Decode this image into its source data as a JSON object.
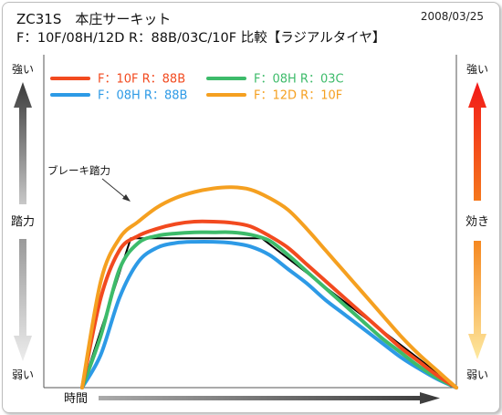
{
  "header": {
    "title_line1": "ZC31S　本庄サーキット",
    "title_line2": "F：10F/08H/12D  R：88B/03C/10F 比較【ラジアルタイヤ】",
    "date": "2008/03/25"
  },
  "left_axis": {
    "top": "強い",
    "middle": "踏力",
    "bottom": "弱い"
  },
  "right_axis": {
    "top": "強い",
    "middle": "効き",
    "bottom": "弱い"
  },
  "x_axis_label": "時間",
  "annotation": "ブレーキ踏力",
  "chart_data": {
    "type": "line",
    "title": "ZC31S　本庄サーキット",
    "subtitle": "F：10F/08H/12D  R：88B/03C/10F 比較【ラジアルタイヤ】",
    "xlabel": "時間",
    "ylabel": "踏力 / 効き (強い–弱い, 目盛りなし)",
    "xlim": [
      0,
      100
    ],
    "ylim": [
      0,
      100
    ],
    "grid": false,
    "legend_position": "top",
    "brake_pedal": {
      "name": "ブレーキ踏力",
      "color": "#000000",
      "x": [
        0,
        13,
        48,
        100
      ],
      "y": [
        0,
        63,
        63,
        0
      ]
    },
    "series": [
      {
        "name": "F：10F  R：88B",
        "color": "#f24a1f",
        "x": [
          0,
          5,
          10,
          15,
          20,
          25,
          30,
          35,
          40,
          45,
          50,
          55,
          60,
          65,
          70,
          75,
          80,
          85,
          90,
          95,
          100
        ],
        "y": [
          0,
          38,
          58,
          64,
          67,
          69,
          70,
          70,
          69.5,
          68,
          64,
          59,
          52,
          45,
          38,
          31,
          24,
          17,
          11,
          5,
          0
        ]
      },
      {
        "name": "F：08H  R：03C",
        "color": "#3dbb6a",
        "x": [
          0,
          5,
          10,
          15,
          20,
          25,
          30,
          35,
          40,
          45,
          50,
          55,
          60,
          65,
          70,
          75,
          80,
          85,
          90,
          95,
          100
        ],
        "y": [
          0,
          22,
          50,
          61,
          64,
          65,
          65.5,
          65.5,
          65.5,
          64.5,
          62,
          56,
          49,
          42,
          35,
          28,
          21,
          15,
          9,
          4,
          0
        ]
      },
      {
        "name": "F：08H  R：88B",
        "color": "#2d9ae6",
        "x": [
          0,
          5,
          10,
          15,
          20,
          25,
          30,
          35,
          40,
          45,
          50,
          55,
          60,
          65,
          70,
          75,
          80,
          85,
          90,
          95,
          100
        ],
        "y": [
          0,
          14,
          38,
          53,
          59,
          61,
          61.5,
          61.5,
          61,
          59.5,
          56,
          50,
          44,
          37,
          31,
          25,
          19,
          13,
          8,
          3.5,
          0
        ]
      },
      {
        "name": "F：12D  R：10F",
        "color": "#f5a020",
        "x": [
          0,
          5,
          10,
          15,
          20,
          25,
          30,
          35,
          40,
          45,
          50,
          55,
          60,
          65,
          70,
          75,
          80,
          85,
          90,
          95,
          100
        ],
        "y": [
          0,
          45,
          63,
          70,
          76,
          80,
          82.5,
          84,
          84.5,
          83.5,
          80,
          75,
          67,
          58,
          49,
          40,
          31,
          22,
          14,
          7,
          0
        ]
      }
    ]
  }
}
